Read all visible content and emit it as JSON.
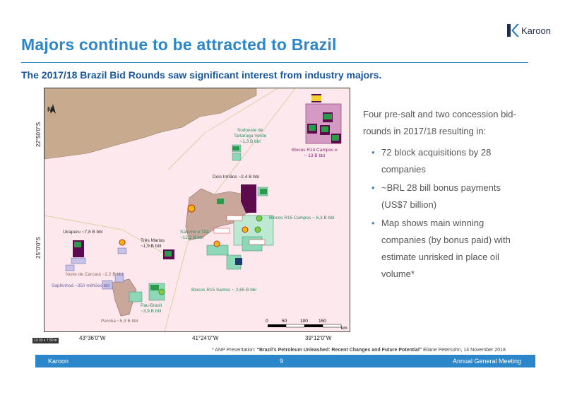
{
  "slide": {
    "title": "Majors continue to be attracted to Brazil",
    "subtitle": "The 2017/18 Brazil Bid Rounds saw significant interest from industry majors.",
    "logo_text": "Karoon"
  },
  "map": {
    "north_label": "N",
    "lat_top": "22°50'0\"S",
    "lat_bottom": "25°0'0\"S",
    "lon_left": "43°36'0\"W",
    "lon_mid": "41°24'0\"W",
    "lon_right": "39°12'0\"W",
    "scale_ticks": [
      "0",
      "50",
      "100",
      "150"
    ],
    "scale_unit": "km",
    "stamp": "13.33 x 7.50 in",
    "labels": {
      "sudoeste": "Sudoeste de\nTartaruga Verde\n~1,3 B bbl",
      "r14": "Blocos R14 Campos e\n~ 13 B bbl",
      "dois_irmaos": "Dois Irmãos ~2,4 B bbl",
      "r15_campos": "Blocos R15 Campos ~ 6,3 B bbl",
      "uirapuru": "Uirapuru ~7,8 B bbl",
      "tres_marias": "Três Marias\n~1,9 B bbl",
      "saturno": "Saturno e Titã\n~12,2 B bbl",
      "norte_carcara": "Norte de Carcará ~2,2 B bbl",
      "saphinhoa": "Saphinhoá ~350 milhões bbl",
      "r15_santos": "Blocos R15 Santos ~ 2,65 B bbl",
      "pau_brasil": "Pau-Brasil\n~3,9 B bbl",
      "peroba": "Peroba ~5,3 B bbl"
    }
  },
  "bullets": {
    "intro": "Four pre-salt and two concession bid-rounds in 2017/18 resulting in:",
    "items": [
      "72 block acquisitions by 28 companies",
      "~BRL 28 bill bonus payments (US$7 billion)",
      "Map shows main winning companies (by bonus paid) with estimate unrisked in place oil volume*"
    ]
  },
  "footnote": {
    "prefix": "* ANP Presentation: ",
    "title": "\"Brazil's Petroleum Unleashed: Recent Changes and Future Potential\"",
    "suffix": "  Eliane Petersohn, 14 November 2018"
  },
  "footer": {
    "left": "Karoon",
    "page": "9",
    "right": "Annual General Meeting"
  },
  "colors": {
    "accent": "#2b87c9",
    "dark_blue": "#17569c",
    "land": "#c8aa8e",
    "sea": "#fde8ee",
    "block_purple": "#5c0b4c",
    "block_brown": "#c9a79b",
    "block_green": "#8ed8b8"
  }
}
